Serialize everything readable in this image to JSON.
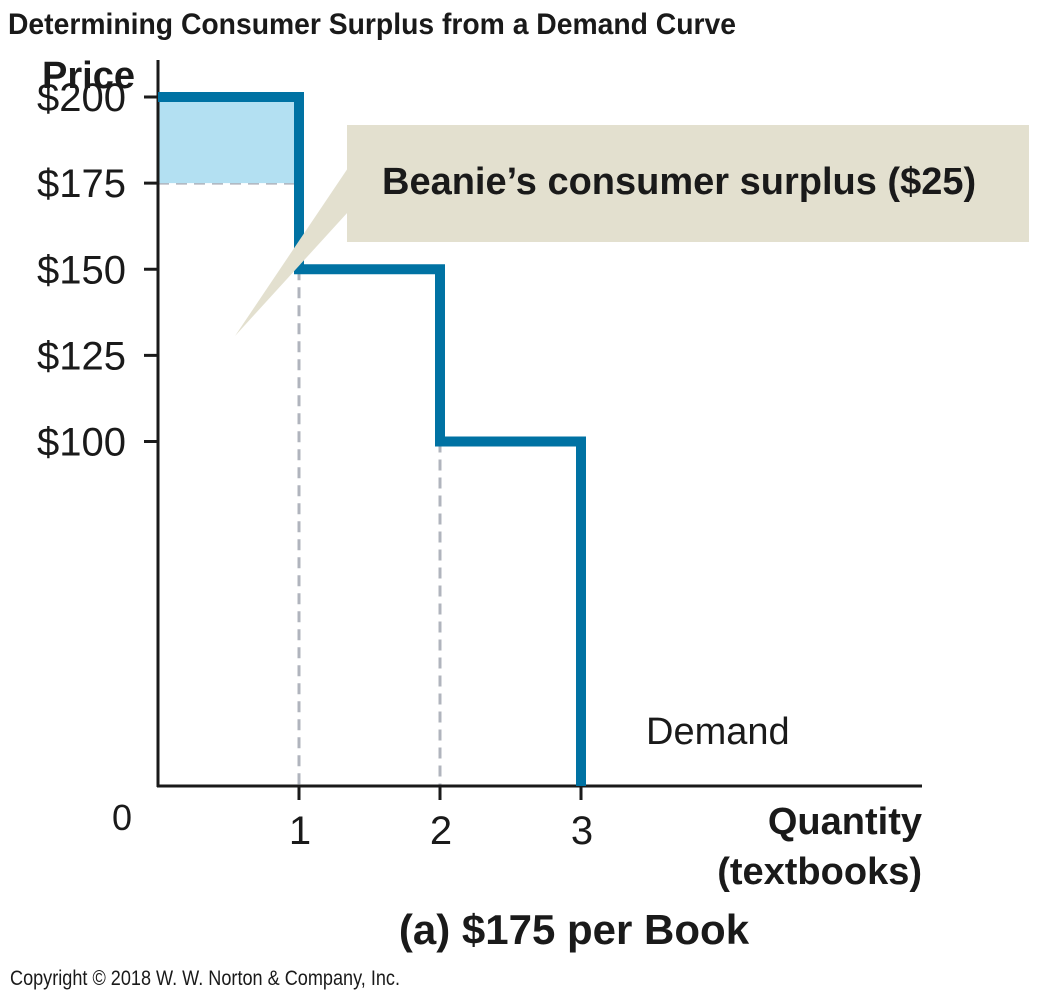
{
  "chart_data": {
    "type": "line",
    "title": "Determining Consumer Surplus from a Demand Curve",
    "subtitle": "(a) $175 per Book",
    "xlabel": "Quantity",
    "xlabel_sub": "(textbooks)",
    "ylabel": "Price",
    "origin_label": "0",
    "x_ticks": [
      1,
      2,
      3
    ],
    "x_tick_labels": [
      "1",
      "2",
      "3"
    ],
    "y_ticks": [
      200,
      175,
      150,
      125,
      100
    ],
    "y_tick_labels": [
      "$200",
      "$175",
      "$150",
      "$125",
      "$100"
    ],
    "xlim": [
      0,
      4.4
    ],
    "ylim": [
      0,
      200
    ],
    "series": [
      {
        "name": "Demand",
        "step_points": [
          [
            0,
            200
          ],
          [
            1,
            200
          ],
          [
            1,
            150
          ],
          [
            2,
            150
          ],
          [
            2,
            100
          ],
          [
            3,
            100
          ],
          [
            3,
            0
          ]
        ]
      }
    ],
    "market_price": 175,
    "surplus_region": {
      "x": [
        0,
        1
      ],
      "y": [
        175,
        200
      ]
    },
    "annotation": "Beanie’s consumer surplus ($25)",
    "colors": {
      "demand": "#0072a3",
      "surplus_fill": "#b3e0f2",
      "callout": "#e3e0cf",
      "guides": "#b0b4bd",
      "axis": "#1a1a1a"
    }
  },
  "copyright": "Copyright © 2018 W. W. Norton & Company, Inc."
}
